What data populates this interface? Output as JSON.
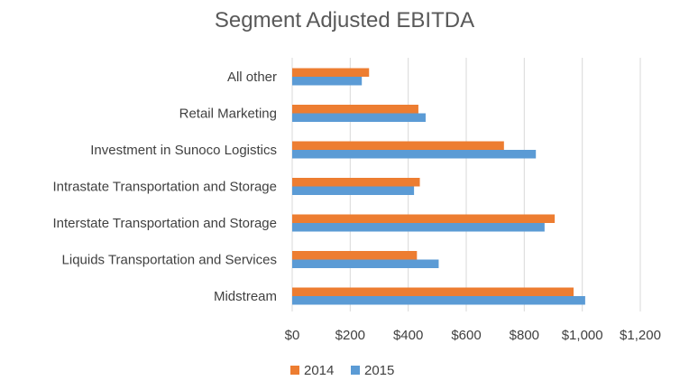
{
  "chart_data": {
    "type": "bar",
    "orientation": "horizontal",
    "title": "Segment Adjusted EBITDA",
    "categories": [
      "All other",
      "Retail Marketing",
      "Investment in Sunoco Logistics",
      "Intrastate Transportation and Storage",
      "Interstate Transportation and Storage",
      "Liquids Transportation and Services",
      "Midstream"
    ],
    "series": [
      {
        "name": "2014",
        "color": "#ED7D31",
        "values": [
          265,
          435,
          730,
          440,
          905,
          430,
          970
        ]
      },
      {
        "name": "2015",
        "color": "#5B9BD5",
        "values": [
          240,
          460,
          840,
          420,
          870,
          505,
          1010
        ]
      }
    ],
    "xlim": [
      0,
      1200
    ],
    "xticks": [
      0,
      200,
      400,
      600,
      800,
      1000,
      1200
    ],
    "xtick_labels": [
      "$0",
      "$200",
      "$400",
      "$600",
      "$800",
      "$1,000",
      "$1,200"
    ],
    "grid": "vertical",
    "legend": "bottom"
  }
}
